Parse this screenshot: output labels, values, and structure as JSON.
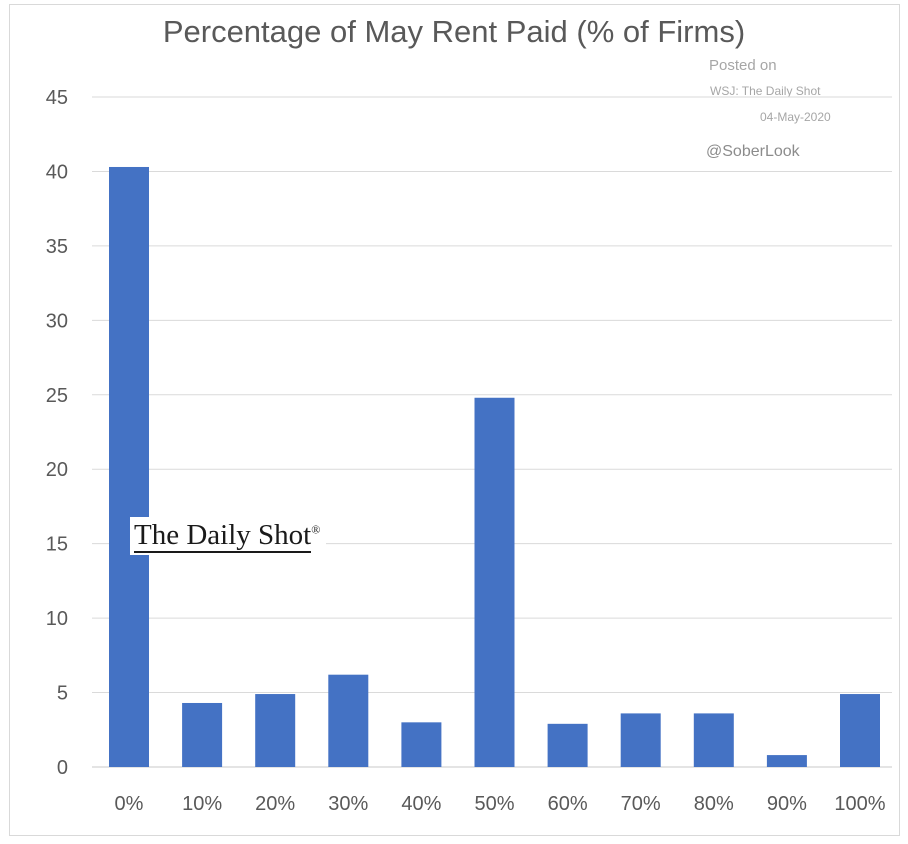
{
  "chart_data": {
    "type": "bar",
    "title": "Percentage of May Rent Paid (% of Firms)",
    "xlabel": "",
    "ylabel": "",
    "categories": [
      "0%",
      "10%",
      "20%",
      "30%",
      "40%",
      "50%",
      "60%",
      "70%",
      "80%",
      "90%",
      "100%"
    ],
    "values": [
      40.3,
      4.3,
      4.9,
      6.2,
      3.0,
      24.8,
      2.9,
      3.6,
      3.6,
      0.8,
      4.9
    ],
    "ylim": [
      0,
      45
    ],
    "yticks": [
      "0",
      "5",
      "10",
      "15",
      "20",
      "25",
      "30",
      "35",
      "40",
      "45"
    ],
    "grid": true,
    "legend": "none",
    "bar_color": "#4472c4",
    "annotations": {
      "posted_on": "Posted on",
      "source": "WSJ: The Daily Shot",
      "date": "04-May-2020",
      "handle": "@SoberLook"
    },
    "logo_text": "The Daily Shot"
  }
}
